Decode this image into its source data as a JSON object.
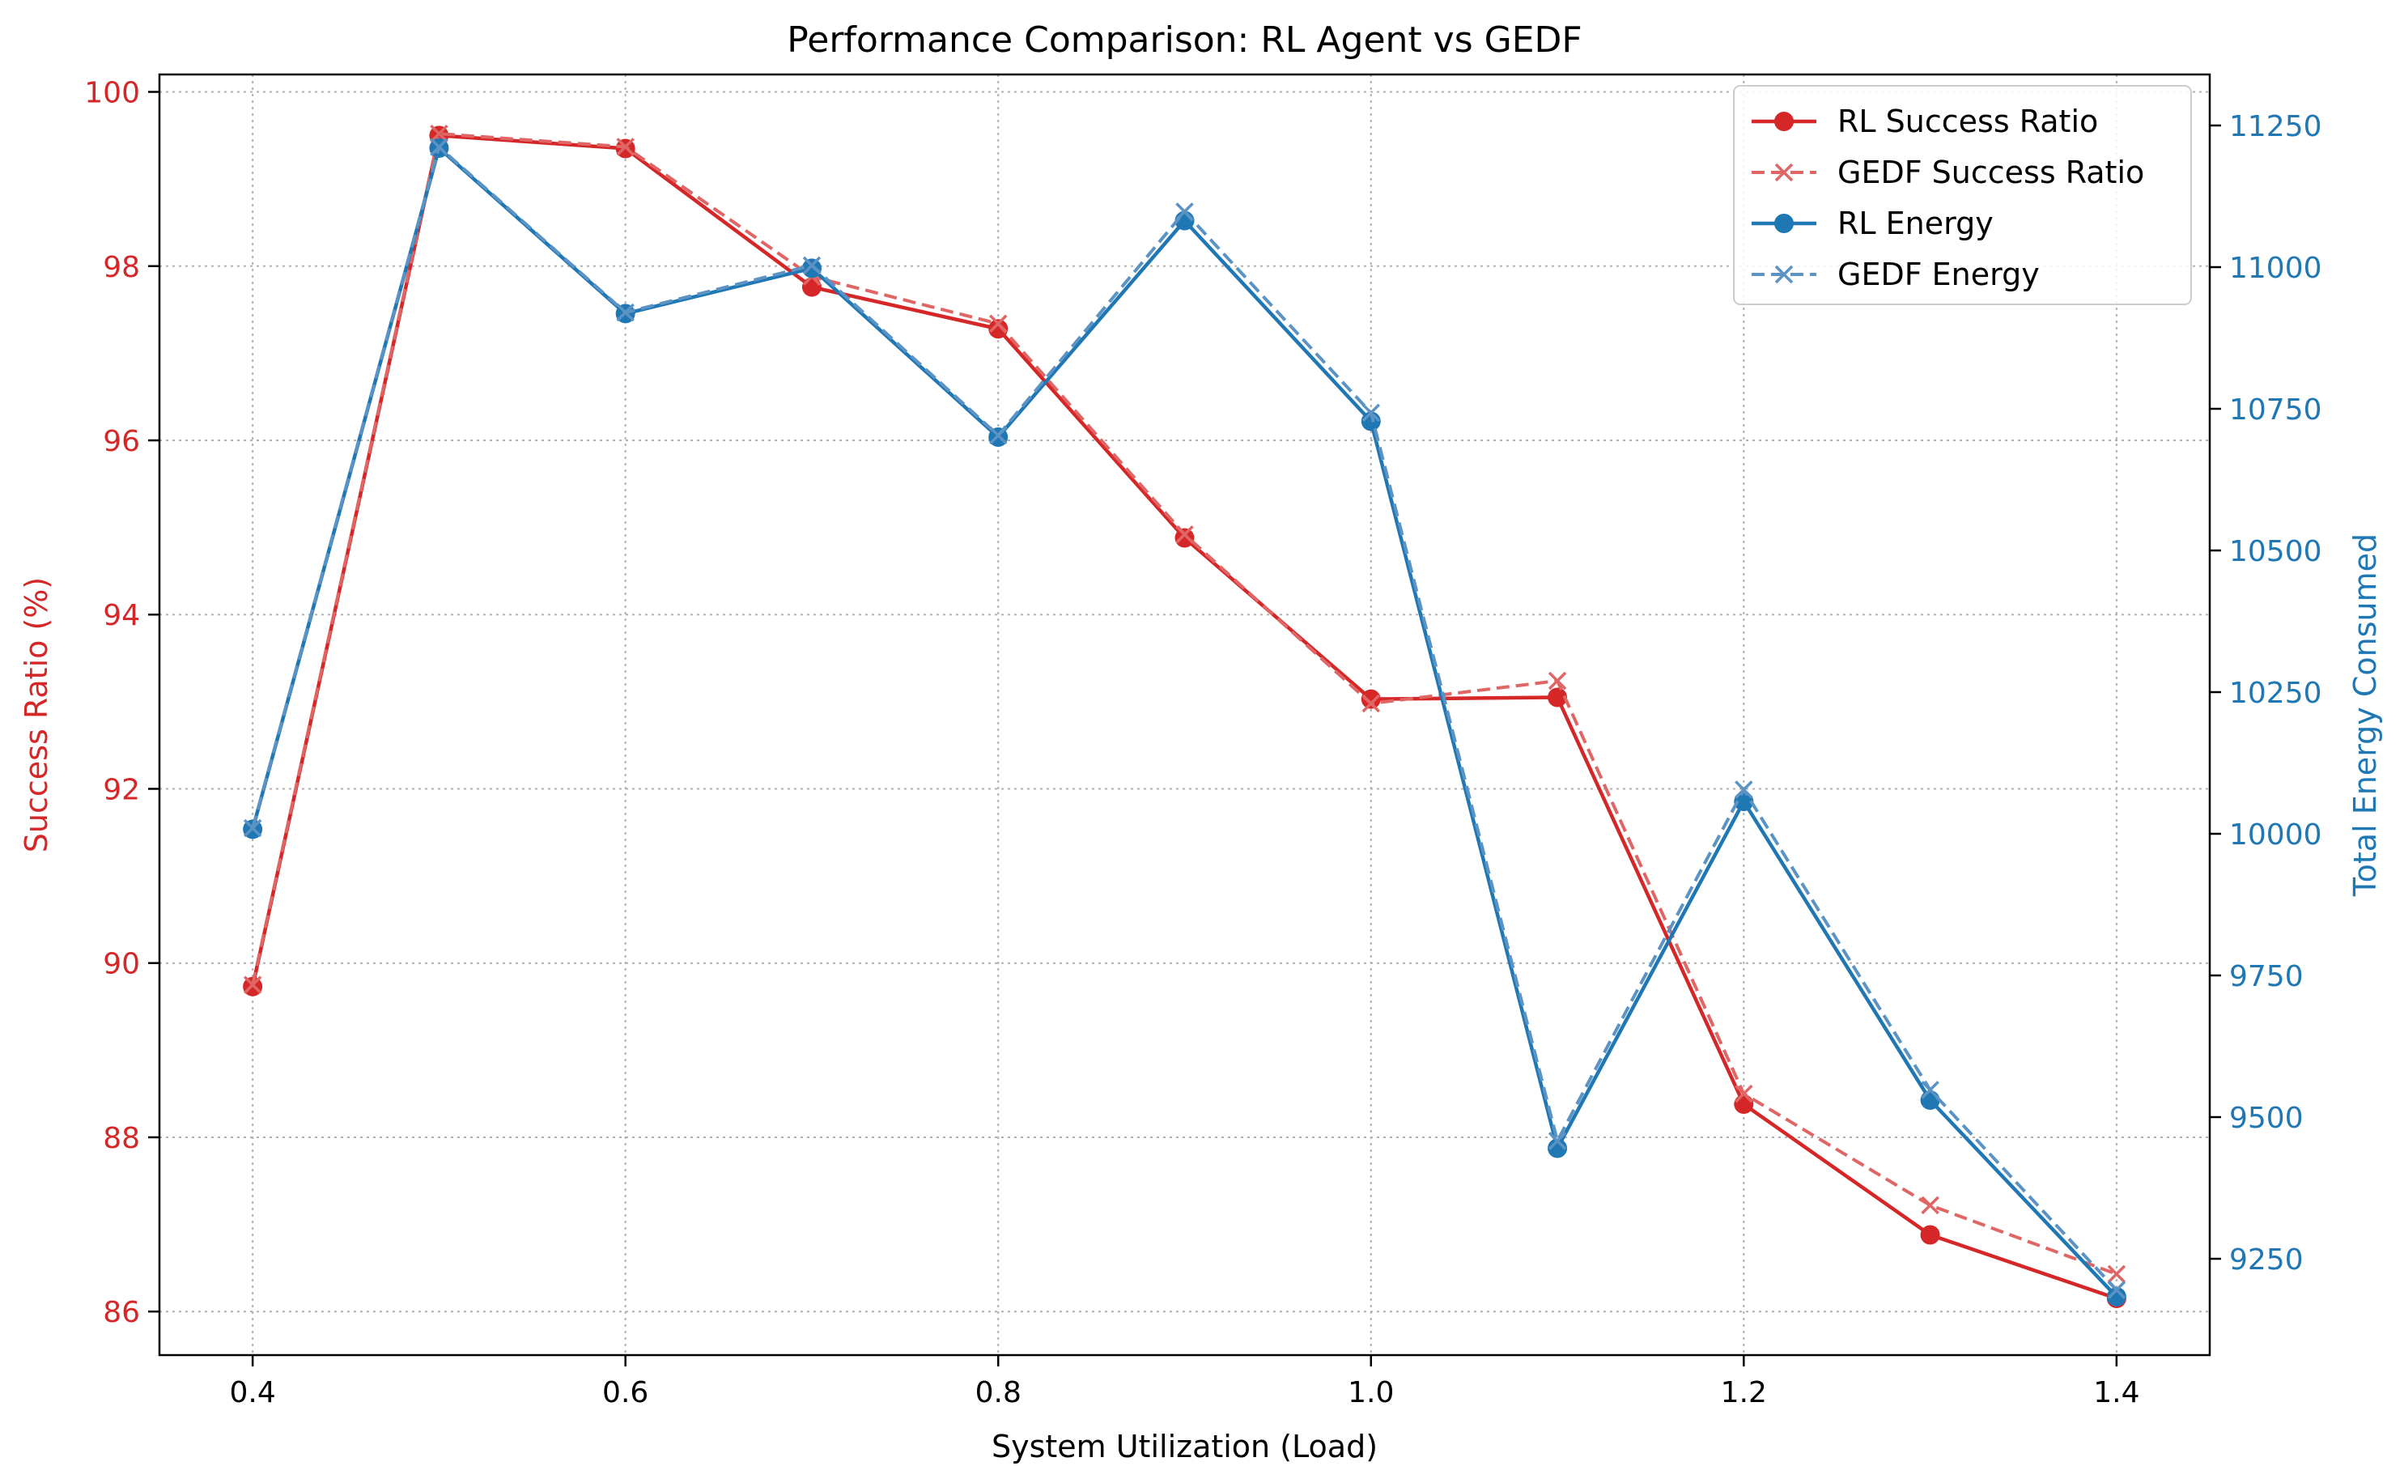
{
  "chart_data": {
    "type": "line",
    "title": "Performance Comparison: RL Agent vs GEDF",
    "xlabel": "System Utilization (Load)",
    "ylabel_left": "Success Ratio (%)",
    "ylabel_right": "Total Energy Consumed",
    "x": [
      0.4,
      0.5,
      0.6,
      0.7,
      0.8,
      0.9,
      1.0,
      1.1,
      1.2,
      1.3,
      1.4
    ],
    "xlim": [
      0.35,
      1.45
    ],
    "xticks": [
      "0.4",
      "0.6",
      "0.8",
      "1.0",
      "1.2",
      "1.4"
    ],
    "ylim_left": [
      85.5,
      100.2
    ],
    "yticks_left": [
      "86",
      "88",
      "90",
      "92",
      "94",
      "96",
      "98",
      "100"
    ],
    "ylim_right": [
      9080,
      11340
    ],
    "yticks_right": [
      "9250",
      "9500",
      "9750",
      "10000",
      "10250",
      "10500",
      "10750",
      "11000",
      "11250"
    ],
    "grid": true,
    "legend_position": "top-right",
    "colors": {
      "red": "#d62728",
      "blue": "#1f77b4"
    },
    "series": [
      {
        "name": "RL Success Ratio",
        "axis": "left",
        "style": "solid",
        "marker": "circle",
        "color": "#d62728",
        "values": [
          89.73,
          99.5,
          99.35,
          97.76,
          97.28,
          94.88,
          93.03,
          93.05,
          88.38,
          86.88,
          86.15
        ]
      },
      {
        "name": "GEDF Success Ratio",
        "axis": "left",
        "style": "dashed",
        "marker": "x",
        "color": "#e06666",
        "values": [
          89.75,
          99.52,
          99.37,
          97.88,
          97.34,
          94.92,
          92.98,
          93.24,
          88.5,
          87.22,
          86.43
        ]
      },
      {
        "name": "RL Energy",
        "axis": "right",
        "style": "solid",
        "marker": "circle",
        "color": "#1f77b4",
        "values": [
          10008,
          11210,
          10918,
          10998,
          10700,
          11082,
          10728,
          9445,
          10057,
          9530,
          9183
        ]
      },
      {
        "name": "GEDF Energy",
        "axis": "right",
        "style": "dashed",
        "marker": "x",
        "color": "#5b93c4",
        "values": [
          10010,
          11212,
          10920,
          11003,
          10703,
          11098,
          10743,
          9458,
          10078,
          9548,
          9195
        ]
      }
    ]
  }
}
